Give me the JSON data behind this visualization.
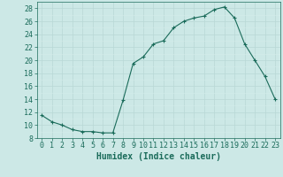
{
  "title": "",
  "xlabel": "Humidex (Indice chaleur)",
  "ylabel": "",
  "x_values": [
    0,
    1,
    2,
    3,
    4,
    5,
    6,
    7,
    8,
    9,
    10,
    11,
    12,
    13,
    14,
    15,
    16,
    17,
    18,
    19,
    20,
    21,
    22,
    23
  ],
  "y_values": [
    11.5,
    10.5,
    10.0,
    9.3,
    9.0,
    9.0,
    8.8,
    8.8,
    13.8,
    19.5,
    20.5,
    22.5,
    23.0,
    25.0,
    26.0,
    26.5,
    26.8,
    27.8,
    28.2,
    26.5,
    22.5,
    20.0,
    17.5,
    14.0
  ],
  "line_color": "#1a6b5a",
  "marker": "+",
  "marker_color": "#1a6b5a",
  "bg_color": "#cce8e6",
  "grid_color_major": "#b8d8d5",
  "grid_color_minor": "#d4ecea",
  "tick_color": "#1a6b5a",
  "label_color": "#1a6b5a",
  "ylim": [
    8,
    29
  ],
  "yticks": [
    8,
    10,
    12,
    14,
    16,
    18,
    20,
    22,
    24,
    26,
    28
  ],
  "xlim": [
    -0.5,
    23.5
  ],
  "xticks": [
    0,
    1,
    2,
    3,
    4,
    5,
    6,
    7,
    8,
    9,
    10,
    11,
    12,
    13,
    14,
    15,
    16,
    17,
    18,
    19,
    20,
    21,
    22,
    23
  ],
  "tick_fontsize": 6.0,
  "xlabel_fontsize": 7.0
}
